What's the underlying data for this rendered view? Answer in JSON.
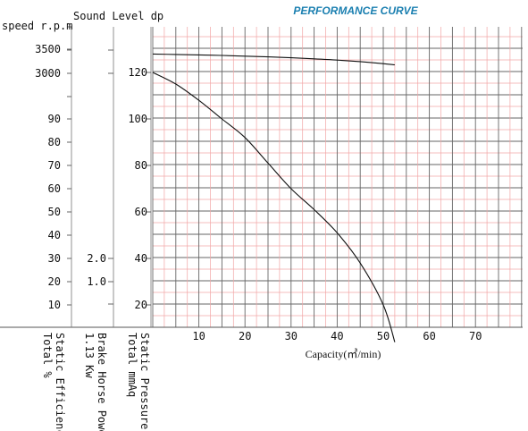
{
  "chart_data": {
    "type": "line",
    "title": "PERFORMANCE CURVE",
    "colors": {
      "title": "#1a7fb0",
      "grid_major": "#666666",
      "grid_minor": "#f2a6a6",
      "curve": "#111111"
    },
    "grid": true,
    "x_axis": {
      "label": "Capacity(㎥/min)",
      "range": [
        0,
        80
      ],
      "ticks": [
        "10",
        "20",
        "30",
        "40",
        "50",
        "60",
        "70"
      ]
    },
    "scales": [
      {
        "header": "speed r.p.m",
        "ticks": [
          3000,
          3500
        ]
      },
      {
        "header": "",
        "ticks": [
          10,
          20,
          30,
          40,
          50,
          60,
          70,
          80,
          90
        ],
        "vertical_label": [
          "Total   %",
          "Static Efficiency"
        ]
      },
      {
        "header": "Sound Level dp",
        "tick_labels": [
          "1.0",
          "2.0"
        ],
        "ticks": [
          1.0,
          2.0
        ],
        "vertical_label": [
          "1.13 Kw",
          "Brake Horse Power"
        ]
      },
      {
        "header": "",
        "ticks": [
          20,
          40,
          60,
          80,
          100,
          120
        ],
        "vertical_label": [
          "Total mmAq",
          "Static Pressure"
        ]
      }
    ],
    "series": [
      {
        "x": [
          0,
          5,
          10,
          15,
          20,
          25,
          30,
          35,
          40,
          45,
          50,
          52.5
        ],
        "y": [
          3400,
          3390,
          3382,
          3370,
          3355,
          3340,
          3322,
          3300,
          3275,
          3242,
          3200,
          3175
        ]
      },
      {
        "x": [
          0,
          5,
          10,
          15,
          20,
          25,
          30,
          35,
          40,
          45,
          50,
          52.5
        ],
        "y": [
          120,
          115,
          108,
          100,
          92,
          81,
          70,
          61,
          51,
          38,
          20,
          4
        ]
      }
    ]
  }
}
